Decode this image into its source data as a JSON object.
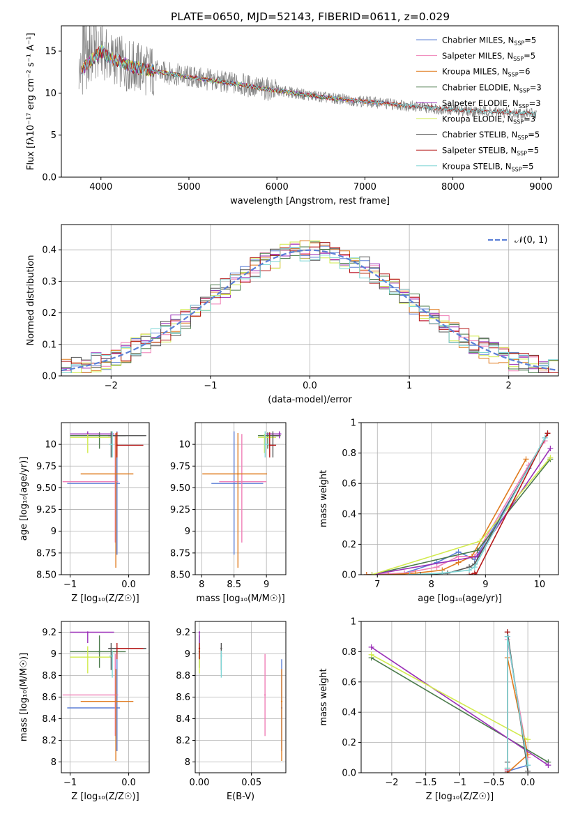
{
  "figure": {
    "title": "PLATE=0650, MJD=52143, FIBERID=0611, z=0.029"
  },
  "colors": {
    "Chabrier MILES": "#5b7fd6",
    "Salpeter MILES": "#ef7fb6",
    "Kroupa MILES": "#e07b1f",
    "Chabrier ELODIE": "#4a7a4a",
    "Salpeter ELODIE": "#9a2fb8",
    "Kroupa ELODIE": "#d2eb4e",
    "Chabrier STELIB": "#555555",
    "Salpeter STELIB": "#b51a1a",
    "Kroupa STELIB": "#7fd6d6",
    "data": "#808080",
    "normal": "#5b7fd6"
  },
  "chart_data": [
    {
      "id": "spectrum",
      "type": "line",
      "xlabel": "wavelength [Angstrom, rest frame]",
      "ylabel": "Flux [fλ10⁻¹⁷ erg cm⁻² s⁻¹ A⁻¹]",
      "xlim": [
        3550,
        9200
      ],
      "ylim": [
        0,
        18
      ],
      "xticks": [
        4000,
        5000,
        6000,
        7000,
        8000,
        9000
      ],
      "yticks": [
        0,
        5,
        10,
        15
      ],
      "legend": "top-right",
      "legend_entries": [
        {
          "label": "Chabrier MILES, N",
          "sub": "SSP",
          "suffix": "=5",
          "model": "Chabrier MILES"
        },
        {
          "label": "Salpeter MILES, N",
          "sub": "SSP",
          "suffix": "=5",
          "model": "Salpeter MILES"
        },
        {
          "label": "Kroupa MILES, N",
          "sub": "SSP",
          "suffix": "=6",
          "model": "Kroupa MILES"
        },
        {
          "label": "Chabrier ELODIE, N",
          "sub": "SSP",
          "suffix": "=3",
          "model": "Chabrier ELODIE"
        },
        {
          "label": "Salpeter ELODIE, N",
          "sub": "SSP",
          "suffix": "=3",
          "model": "Salpeter ELODIE"
        },
        {
          "label": "Kroupa ELODIE, N",
          "sub": "SSP",
          "suffix": "=3",
          "model": "Kroupa ELODIE"
        },
        {
          "label": "Chabrier STELIB, N",
          "sub": "SSP",
          "suffix": "=5",
          "model": "Chabrier STELIB"
        },
        {
          "label": "Salpeter STELIB, N",
          "sub": "SSP",
          "suffix": "=5",
          "model": "Salpeter STELIB"
        },
        {
          "label": "Kroupa STELIB, N",
          "sub": "SSP",
          "suffix": "=5",
          "model": "Kroupa STELIB"
        }
      ],
      "data_curve": {
        "x": [
          3750,
          3800,
          3850,
          3900,
          3950,
          4000,
          4100,
          4200,
          4300,
          4400,
          4500,
          4600,
          4800,
          5000,
          5200,
          5400,
          5600,
          5800,
          6000,
          6200,
          6400,
          6600,
          6800,
          7000,
          7200,
          7400,
          7600,
          7800,
          8000,
          8200,
          8400,
          8600,
          8800,
          8950
        ],
        "y": [
          12.5,
          13.0,
          13.5,
          14.0,
          14.5,
          15.0,
          14.2,
          13.8,
          13.3,
          13.0,
          12.8,
          12.6,
          12.3,
          11.9,
          11.6,
          11.3,
          11.0,
          10.6,
          10.3,
          10.0,
          9.7,
          9.4,
          9.2,
          9.0,
          8.8,
          8.6,
          8.4,
          8.2,
          8.0,
          7.9,
          7.8,
          7.7,
          7.6,
          7.5
        ]
      }
    },
    {
      "id": "residuals",
      "type": "line",
      "xlabel": "(data-model)/error",
      "ylabel": "Normed distribution",
      "xlim": [
        -2.5,
        2.5
      ],
      "ylim": [
        0,
        0.48
      ],
      "xticks": [
        -2,
        -1,
        0,
        1,
        2
      ],
      "yticks": [
        0.0,
        0.1,
        0.2,
        0.3,
        0.4
      ],
      "legend": "top-right",
      "normal_label": "𝒩(0, 1)",
      "hist_bin_width": 0.1
    },
    {
      "id": "age_vs_Z",
      "type": "scatter",
      "xlabel": "Z [log₁₀(Z/Z☉)]",
      "ylabel": "age  [log₁₀(age/yr)]",
      "xlim": [
        -1.15,
        0.35
      ],
      "ylim": [
        8.5,
        10.25
      ],
      "xticks": [
        -1,
        0
      ],
      "yticks": [
        8.5,
        8.75,
        9.0,
        9.25,
        9.5,
        9.75,
        10.0
      ],
      "points": [
        {
          "model": "Chabrier MILES",
          "x": -0.2,
          "xerr": [
            0.85,
            0.05
          ],
          "y": 9.55,
          "yerr": [
            0.82,
            0.6
          ]
        },
        {
          "model": "Salpeter MILES",
          "x": -0.23,
          "xerr": [
            0.9,
            0.05
          ],
          "y": 9.57,
          "yerr": [
            0.7,
            0.55
          ]
        },
        {
          "model": "Kroupa MILES",
          "x": -0.22,
          "xerr": [
            0.6,
            0.3
          ],
          "y": 9.66,
          "yerr": [
            1.08,
            0.47
          ]
        },
        {
          "model": "Chabrier ELODIE",
          "x": -0.5,
          "xerr": [
            0.5,
            0.45
          ],
          "y": 10.1,
          "yerr": [
            0.15,
            0.04
          ]
        },
        {
          "model": "Salpeter ELODIE",
          "x": -0.7,
          "xerr": [
            0.3,
            0.45
          ],
          "y": 10.12,
          "yerr": [
            0.05,
            0.03
          ]
        },
        {
          "model": "Kroupa ELODIE",
          "x": -0.7,
          "xerr": [
            0.3,
            0.4
          ],
          "y": 10.08,
          "yerr": [
            0.18,
            0.04
          ]
        },
        {
          "model": "Chabrier STELIB",
          "x": -0.3,
          "xerr": [
            0.05,
            0.6
          ],
          "y": 10.1,
          "yerr": [
            0.25,
            0.05
          ]
        },
        {
          "model": "Salpeter STELIB",
          "x": -0.2,
          "xerr": [
            0.0,
            0.45
          ],
          "y": 9.99,
          "yerr": [
            0.14,
            0.15
          ]
        },
        {
          "model": "Kroupa STELIB",
          "x": -0.28,
          "xerr": [
            0.05,
            0.0
          ],
          "y": 10.0,
          "yerr": [
            0.15,
            0.15
          ]
        }
      ]
    },
    {
      "id": "age_vs_mass",
      "type": "scatter",
      "xlabel": "mass [log₁₀(M/M☉)]",
      "ylabel": "",
      "xlim": [
        7.9,
        9.3
      ],
      "ylim": [
        8.5,
        10.25
      ],
      "xticks": [
        8.0,
        8.5,
        9.0
      ],
      "yticks": [
        8.5,
        8.75,
        9.0,
        9.25,
        9.5,
        9.75,
        10.0
      ],
      "points": [
        {
          "model": "Chabrier MILES",
          "x": 8.5,
          "xerr": [
            0.35,
            0.45
          ],
          "y": 9.55,
          "yerr": [
            0.82,
            0.6
          ]
        },
        {
          "model": "Salpeter MILES",
          "x": 8.62,
          "xerr": [
            0.35,
            0.38
          ],
          "y": 9.57,
          "yerr": [
            0.7,
            0.55
          ]
        },
        {
          "model": "Kroupa MILES",
          "x": 8.56,
          "xerr": [
            0.55,
            0.45
          ],
          "y": 9.66,
          "yerr": [
            1.08,
            0.47
          ]
        },
        {
          "model": "Chabrier ELODIE",
          "x": 9.02,
          "xerr": [
            0.15,
            0.2
          ],
          "y": 10.1,
          "yerr": [
            0.15,
            0.04
          ]
        },
        {
          "model": "Salpeter ELODIE",
          "x": 9.2,
          "xerr": [
            0.2,
            0.03
          ],
          "y": 10.12,
          "yerr": [
            0.05,
            0.03
          ]
        },
        {
          "model": "Kroupa ELODIE",
          "x": 8.97,
          "xerr": [
            0.1,
            0.18
          ],
          "y": 10.08,
          "yerr": [
            0.18,
            0.04
          ]
        },
        {
          "model": "Chabrier STELIB",
          "x": 9.1,
          "xerr": [
            0.0,
            0.1
          ],
          "y": 10.1,
          "yerr": [
            0.25,
            0.05
          ]
        },
        {
          "model": "Salpeter STELIB",
          "x": 9.05,
          "xerr": [
            0.0,
            0.1
          ],
          "y": 9.99,
          "yerr": [
            0.14,
            0.15
          ]
        },
        {
          "model": "Kroupa STELIB",
          "x": 8.98,
          "xerr": [
            0.0,
            0.06
          ],
          "y": 10.0,
          "yerr": [
            0.15,
            0.15
          ]
        }
      ]
    },
    {
      "id": "weight_vs_age",
      "type": "line",
      "xlabel": "age  [log₁₀(age/yr)]",
      "ylabel": "mass weight",
      "xlim": [
        6.7,
        10.35
      ],
      "ylim": [
        0,
        1.0
      ],
      "xticks": [
        7,
        8,
        9,
        10
      ],
      "yticks": [
        0.0,
        0.2,
        0.4,
        0.6,
        0.8,
        1.0
      ],
      "series": [
        {
          "model": "Chabrier MILES",
          "x": [
            6.8,
            7.5,
            8.1,
            8.5,
            8.8,
            9.8,
            10.1
          ],
          "y": [
            0.0,
            0.01,
            0.08,
            0.15,
            0.1,
            0.7,
            0.9
          ]
        },
        {
          "model": "Salpeter MILES",
          "x": [
            6.8,
            7.5,
            8.1,
            8.5,
            8.8,
            9.8,
            10.1
          ],
          "y": [
            0.0,
            0.01,
            0.05,
            0.12,
            0.12,
            0.72,
            0.88
          ]
        },
        {
          "model": "Kroupa MILES",
          "x": [
            6.8,
            7.2,
            7.7,
            8.2,
            8.5,
            8.75,
            9.75
          ],
          "y": [
            0.0,
            0.0,
            0.01,
            0.03,
            0.08,
            0.12,
            0.76
          ]
        },
        {
          "model": "Chabrier ELODIE",
          "x": [
            6.9,
            8.85,
            10.2
          ],
          "y": [
            0.0,
            0.16,
            0.76
          ]
        },
        {
          "model": "Salpeter ELODIE",
          "x": [
            6.9,
            8.85,
            10.2
          ],
          "y": [
            0.0,
            0.12,
            0.83
          ]
        },
        {
          "model": "Kroupa ELODIE",
          "x": [
            6.9,
            8.9,
            10.2
          ],
          "y": [
            0.0,
            0.22,
            0.77
          ]
        },
        {
          "model": "Chabrier STELIB",
          "x": [
            7.8,
            8.3,
            8.7,
            8.8,
            10.15
          ],
          "y": [
            0.0,
            0.01,
            0.05,
            0.07,
            0.93
          ]
        },
        {
          "model": "Salpeter STELIB",
          "x": [
            8.7,
            8.8,
            8.82,
            10.15
          ],
          "y": [
            0.0,
            0.01,
            0.0,
            0.93
          ]
        },
        {
          "model": "Kroupa STELIB",
          "x": [
            7.6,
            8.2,
            8.7,
            8.8,
            10.1
          ],
          "y": [
            0.0,
            0.01,
            0.03,
            0.05,
            0.9
          ]
        }
      ]
    },
    {
      "id": "mass_vs_Z",
      "type": "scatter",
      "xlabel": "Z [log₁₀(Z/Z☉)]",
      "ylabel": "mass [log₁₀(M/M☉)]",
      "xlim": [
        -1.15,
        0.35
      ],
      "ylim": [
        7.9,
        9.3
      ],
      "xticks": [
        -1,
        0
      ],
      "yticks": [
        8.0,
        8.2,
        8.4,
        8.6,
        8.8,
        9.0,
        9.2
      ],
      "points": [
        {
          "model": "Chabrier MILES",
          "x": -0.2,
          "xerr": [
            0.85,
            0.05
          ],
          "y": 8.5,
          "yerr": [
            0.4,
            0.45
          ]
        },
        {
          "model": "Salpeter MILES",
          "x": -0.23,
          "xerr": [
            0.9,
            0.05
          ],
          "y": 8.62,
          "yerr": [
            0.38,
            0.38
          ]
        },
        {
          "model": "Kroupa MILES",
          "x": -0.22,
          "xerr": [
            0.6,
            0.3
          ],
          "y": 8.56,
          "yerr": [
            0.55,
            0.3
          ]
        },
        {
          "model": "Chabrier ELODIE",
          "x": -0.5,
          "xerr": [
            0.5,
            0.45
          ],
          "y": 9.02,
          "yerr": [
            0.15,
            0.15
          ]
        },
        {
          "model": "Salpeter ELODIE",
          "x": -0.7,
          "xerr": [
            0.3,
            0.45
          ],
          "y": 9.2,
          "yerr": [
            0.1,
            0.0
          ]
        },
        {
          "model": "Kroupa ELODIE",
          "x": -0.7,
          "xerr": [
            0.3,
            0.4
          ],
          "y": 8.97,
          "yerr": [
            0.15,
            0.1
          ]
        },
        {
          "model": "Chabrier STELIB",
          "x": -0.3,
          "xerr": [
            0.05,
            0.6
          ],
          "y": 9.05,
          "yerr": [
            0.2,
            0.05
          ]
        },
        {
          "model": "Salpeter STELIB",
          "x": -0.2,
          "xerr": [
            0.0,
            0.45
          ],
          "y": 9.05,
          "yerr": [
            0.1,
            0.05
          ]
        },
        {
          "model": "Kroupa STELIB",
          "x": -0.28,
          "xerr": [
            0.05,
            0.0
          ],
          "y": 8.98,
          "yerr": [
            0.2,
            0.05
          ]
        }
      ]
    },
    {
      "id": "mass_vs_ebv",
      "type": "scatter",
      "xlabel": "E(B-V)",
      "ylabel": "",
      "xlim": [
        -0.004,
        0.083
      ],
      "ylim": [
        7.9,
        9.3
      ],
      "xticks": [
        0.0,
        0.05
      ],
      "yticks": [
        8.0,
        8.2,
        8.4,
        8.6,
        8.8,
        9.0,
        9.2
      ],
      "points": [
        {
          "model": "Chabrier MILES",
          "x": 0.079,
          "y": 8.5,
          "yerr": [
            0.4,
            0.45
          ]
        },
        {
          "model": "Salpeter MILES",
          "x": 0.063,
          "y": 8.62,
          "yerr": [
            0.38,
            0.38
          ]
        },
        {
          "model": "Kroupa MILES",
          "x": 0.079,
          "y": 8.56,
          "yerr": [
            0.55,
            0.3
          ]
        },
        {
          "model": "Chabrier ELODIE",
          "x": 0.0,
          "y": 9.02,
          "yerr": [
            0.15,
            0.15
          ]
        },
        {
          "model": "Salpeter ELODIE",
          "x": 0.0,
          "y": 9.2,
          "yerr": [
            0.1,
            0.0
          ]
        },
        {
          "model": "Kroupa ELODIE",
          "x": 0.0,
          "y": 8.97,
          "yerr": [
            0.15,
            0.1
          ]
        },
        {
          "model": "Chabrier STELIB",
          "x": 0.021,
          "y": 9.05,
          "yerr": [
            0.2,
            0.05
          ]
        },
        {
          "model": "Salpeter STELIB",
          "x": 0.0,
          "y": 9.05,
          "yerr": [
            0.1,
            0.05
          ]
        },
        {
          "model": "Kroupa STELIB",
          "x": 0.021,
          "y": 8.98,
          "yerr": [
            0.2,
            0.05
          ]
        }
      ]
    },
    {
      "id": "weight_vs_Z",
      "type": "line",
      "xlabel": "Z [log₁₀(Z/Z☉)]",
      "ylabel": "mass weight",
      "xlim": [
        -2.45,
        0.45
      ],
      "ylim": [
        0,
        1.0
      ],
      "xticks": [
        -2.0,
        -1.5,
        -1.0,
        -0.5,
        0.0
      ],
      "yticks": [
        0.0,
        0.2,
        0.4,
        0.6,
        0.8,
        1.0
      ],
      "series": [
        {
          "model": "Chabrier MILES",
          "x": [
            -0.3,
            -0.3,
            0.0,
            -0.3
          ],
          "y": [
            0.0,
            0.9,
            0.05,
            0.01
          ]
        },
        {
          "model": "Salpeter MILES",
          "x": [
            -0.3,
            -0.3,
            0.0
          ],
          "y": [
            0.02,
            0.88,
            0.1
          ]
        },
        {
          "model": "Kroupa MILES",
          "x": [
            -0.3,
            -0.3,
            0.0,
            -0.3
          ],
          "y": [
            0.03,
            0.76,
            0.12,
            0.0
          ]
        },
        {
          "model": "Chabrier ELODIE",
          "x": [
            -2.3,
            0.3
          ],
          "y": [
            0.76,
            0.07
          ]
        },
        {
          "model": "Salpeter ELODIE",
          "x": [
            -2.3,
            0.3
          ],
          "y": [
            0.83,
            0.05
          ]
        },
        {
          "model": "Kroupa ELODIE",
          "x": [
            -2.3,
            0.0
          ],
          "y": [
            0.78,
            0.22
          ]
        },
        {
          "model": "Chabrier STELIB",
          "x": [
            -0.3,
            -0.3,
            0.0
          ],
          "y": [
            0.07,
            0.93,
            0.01
          ]
        },
        {
          "model": "Salpeter STELIB",
          "x": [
            -0.3,
            -0.3
          ],
          "y": [
            0.01,
            0.93
          ]
        },
        {
          "model": "Kroupa STELIB",
          "x": [
            -0.3,
            -0.3,
            0.0
          ],
          "y": [
            0.03,
            0.9,
            0.05
          ]
        }
      ]
    }
  ]
}
